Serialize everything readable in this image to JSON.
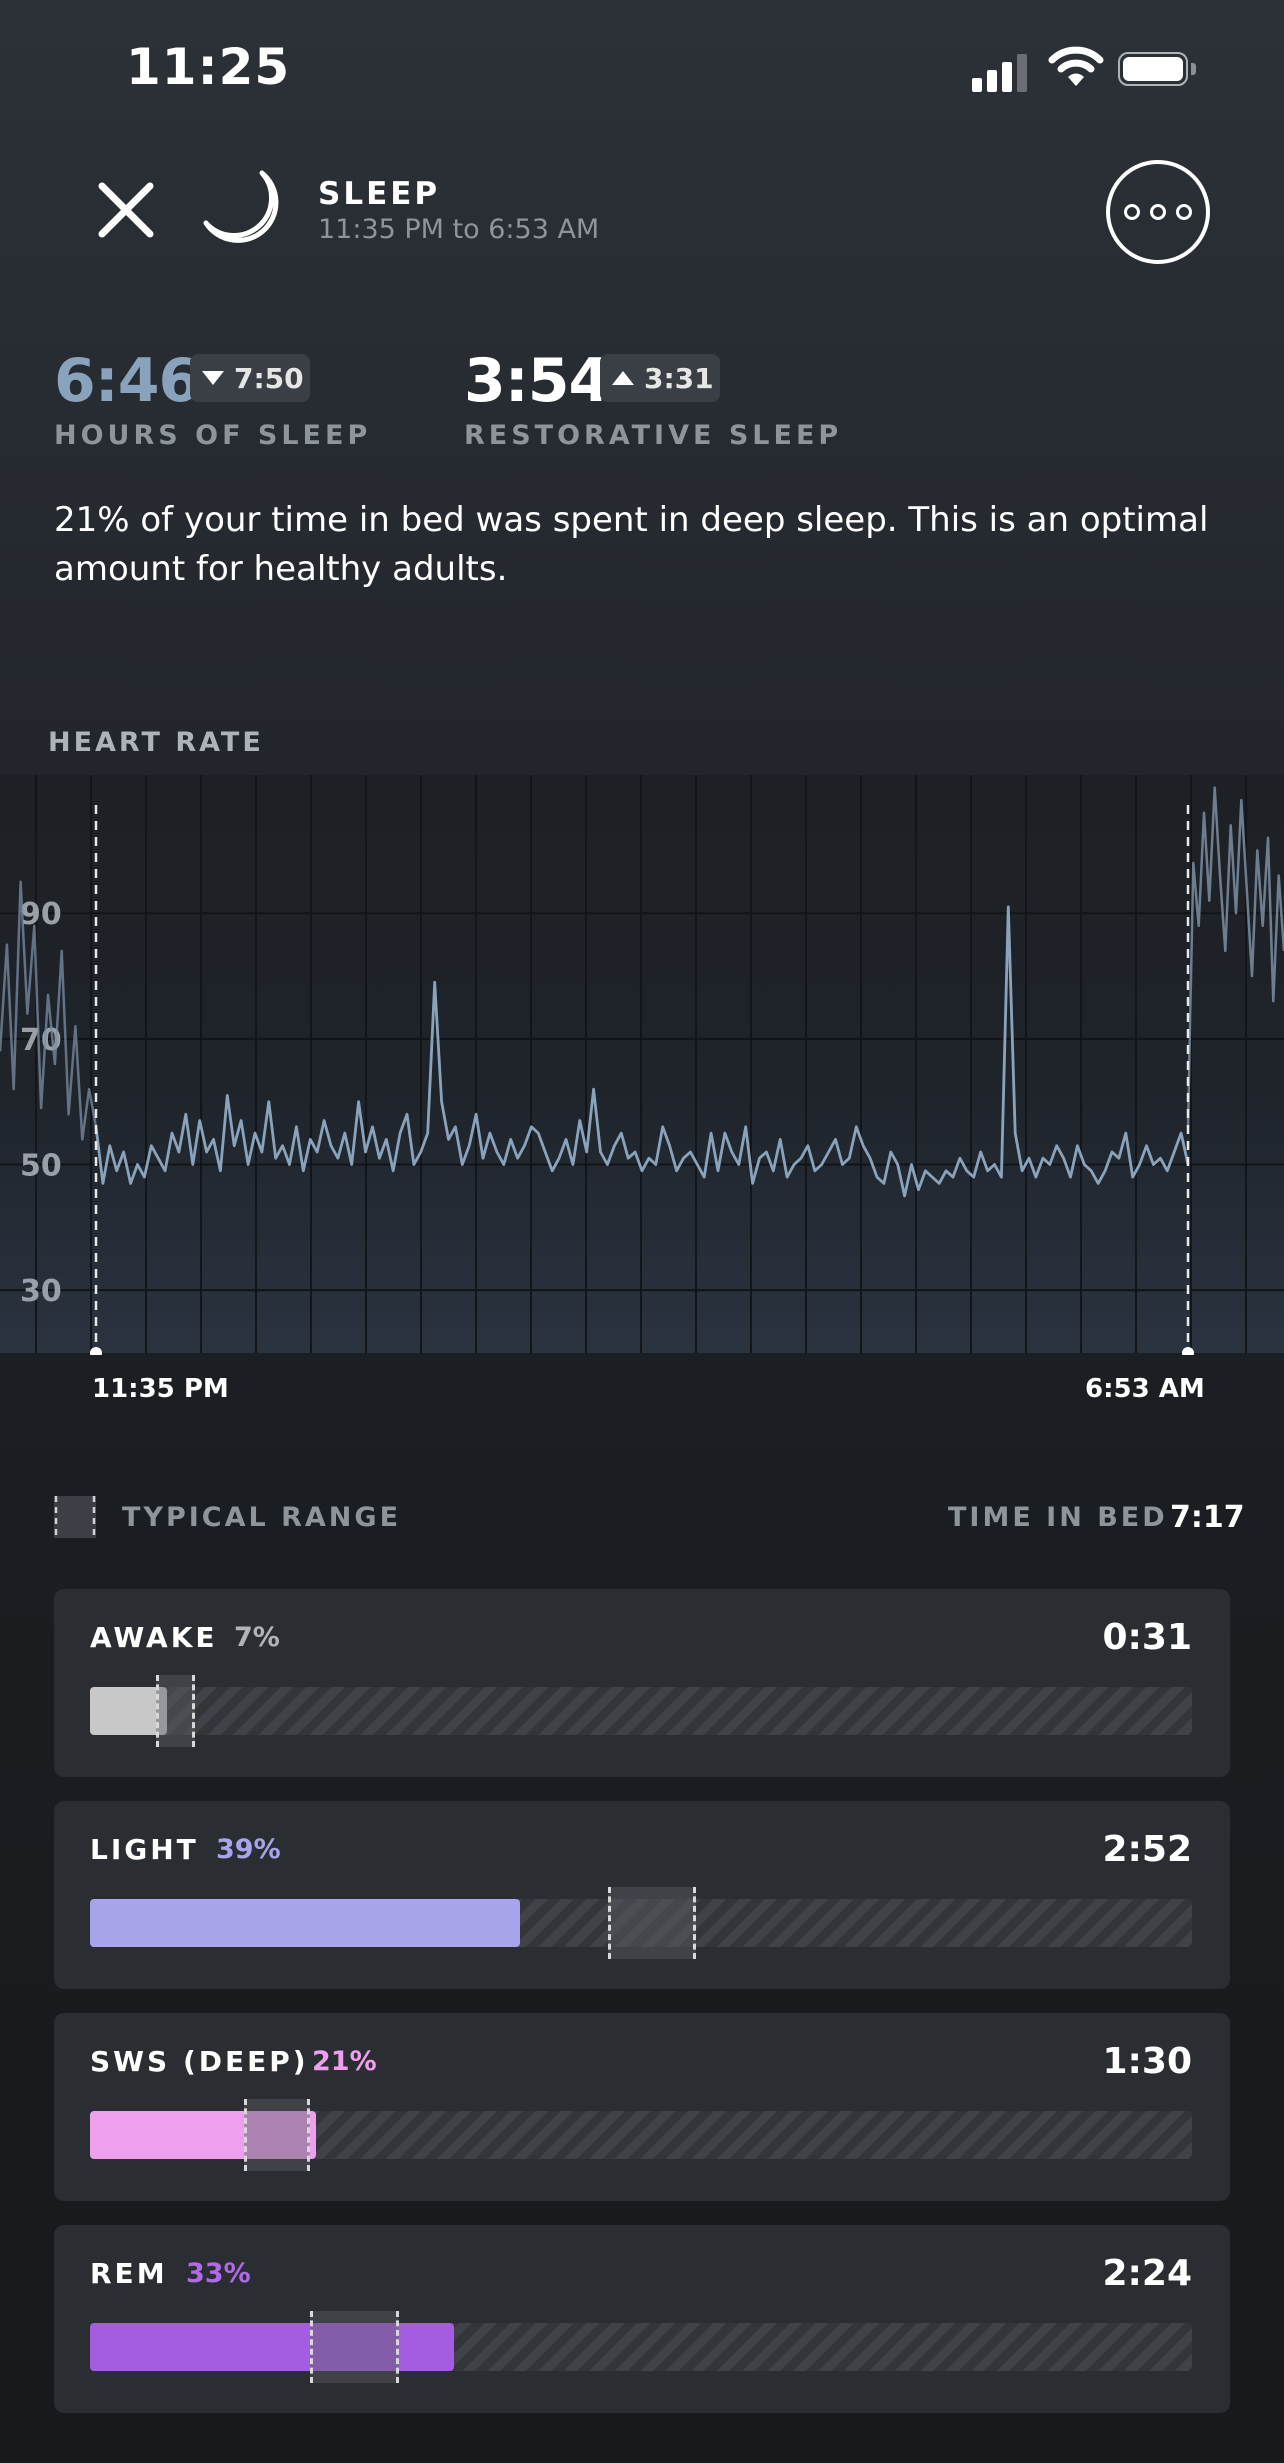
{
  "status_bar": {
    "time": "11:25"
  },
  "header": {
    "title": "SLEEP",
    "subtitle": "11:35 PM to 6:53 AM"
  },
  "stats": {
    "hours_of_sleep": {
      "value": "6:46",
      "compare": "7:50",
      "direction": "down",
      "label": "HOURS OF SLEEP"
    },
    "restorative_sleep": {
      "value": "3:54",
      "compare": "3:31",
      "direction": "up",
      "label": "RESTORATIVE SLEEP"
    }
  },
  "description": "21% of your time in bed was spent in deep sleep. This is an optimal amount for healthy adults.",
  "heart_rate": {
    "title": "HEART RATE",
    "y_ticks": [
      "90",
      "70",
      "50",
      "30"
    ],
    "start_label": "11:35 PM",
    "end_label": "6:53 AM"
  },
  "chart_data": {
    "type": "line",
    "title": "HEART RATE",
    "y_ticks": [
      30,
      50,
      70,
      90
    ],
    "ylim": [
      20,
      112
    ],
    "x_start": "11:35 PM",
    "x_end": "6:53 AM",
    "grid": true,
    "series": [
      {
        "values": [
          56,
          47,
          53,
          49,
          52,
          47,
          50,
          48,
          53,
          51,
          49,
          55,
          52,
          58,
          50,
          57,
          52,
          54,
          49,
          61,
          53,
          57,
          50,
          55,
          52,
          60,
          51,
          53,
          50,
          56,
          49,
          54,
          52,
          57,
          53,
          51,
          55,
          50,
          60,
          52,
          56,
          51,
          54,
          49,
          55,
          58,
          50,
          52,
          55,
          79,
          60,
          54,
          56,
          50,
          53,
          58,
          51,
          55,
          52,
          50,
          54,
          51,
          53,
          56,
          55,
          52,
          49,
          51,
          54,
          50,
          57,
          52,
          62,
          52,
          50,
          53,
          55,
          51,
          52,
          49,
          51,
          50,
          56,
          53,
          49,
          51,
          52,
          50,
          48,
          55,
          49,
          55,
          52,
          50,
          56,
          47,
          51,
          52,
          49,
          54,
          48,
          50,
          51,
          53,
          49,
          50,
          52,
          54,
          50,
          51,
          56,
          53,
          51,
          48,
          47,
          52,
          50,
          45,
          50,
          46,
          49,
          48,
          47,
          49,
          48,
          51,
          49,
          48,
          52,
          49,
          50,
          48,
          91,
          55,
          49,
          51,
          48,
          51,
          50,
          53,
          51,
          48,
          53,
          50,
          49,
          47,
          49,
          52,
          51,
          55,
          48,
          50,
          53,
          50,
          51,
          49,
          52,
          55,
          50
        ]
      }
    ]
  },
  "legend": {
    "typical_range": "TYPICAL RANGE",
    "time_in_bed_label": "TIME IN BED",
    "time_in_bed_value": "7:17"
  },
  "stages": [
    {
      "name": "AWAKE",
      "percent": "7%",
      "duration": "0:31",
      "fraction": 0.07,
      "color": "#c8c8c8",
      "pct_color": "#b0b4b9",
      "range": [
        0.06,
        0.095
      ]
    },
    {
      "name": "LIGHT",
      "percent": "39%",
      "duration": "2:52",
      "fraction": 0.39,
      "color": "#a7a4ec",
      "pct_color": "#a7a4ec",
      "range": [
        0.47,
        0.55
      ]
    },
    {
      "name": "SWS (DEEP)",
      "percent": "21%",
      "duration": "1:30",
      "fraction": 0.205,
      "color": "#eea0ee",
      "pct_color": "#eea0ee",
      "range": [
        0.14,
        0.2
      ]
    },
    {
      "name": "REM",
      "percent": "33%",
      "duration": "2:24",
      "fraction": 0.33,
      "color": "#a45de0",
      "pct_color": "#b06ae8",
      "range": [
        0.2,
        0.28
      ]
    }
  ]
}
